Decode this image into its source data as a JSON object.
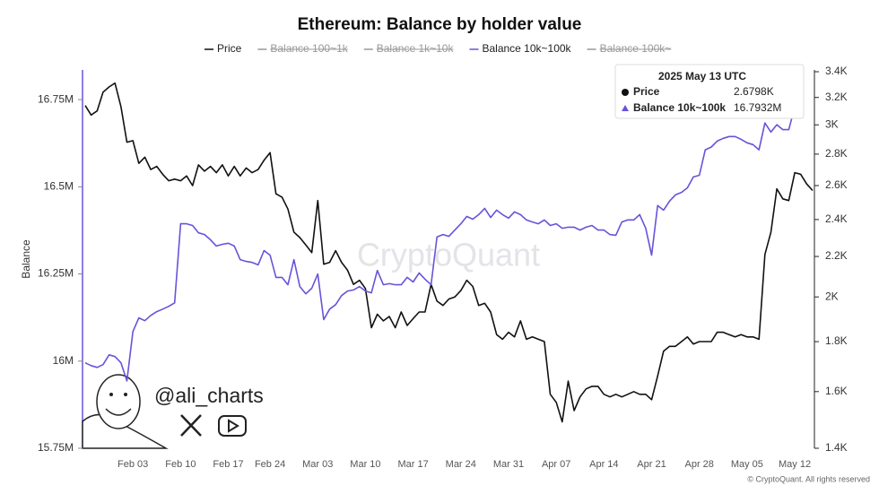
{
  "chart_data": {
    "type": "line",
    "title": "Ethereum: Balance by holder value",
    "y_label": "Balance",
    "watermark": "CryptoQuant",
    "author": "@ali_charts",
    "copyright": "© CryptoQuant. All rights reserved",
    "categories": [
      null,
      null,
      null,
      null,
      null,
      null,
      null,
      null,
      "Feb 03",
      null,
      null,
      null,
      null,
      null,
      null,
      null,
      "Feb 10",
      null,
      null,
      null,
      null,
      null,
      null,
      null,
      "Feb 17",
      null,
      null,
      null,
      null,
      null,
      null,
      "Feb 24",
      null,
      null,
      null,
      null,
      null,
      null,
      null,
      "Mar 03",
      null,
      null,
      null,
      null,
      null,
      null,
      null,
      "Mar 10",
      null,
      null,
      null,
      null,
      null,
      null,
      null,
      "Mar 17",
      null,
      null,
      null,
      null,
      null,
      null,
      null,
      "Mar 24",
      null,
      null,
      null,
      null,
      null,
      null,
      null,
      "Mar 31",
      null,
      null,
      null,
      null,
      null,
      null,
      null,
      "Apr 07",
      null,
      null,
      null,
      null,
      null,
      null,
      null,
      "Apr 14",
      null,
      null,
      null,
      null,
      null,
      null,
      null,
      "Apr 21",
      null,
      null,
      null,
      null,
      null,
      null,
      null,
      "Apr 28",
      null,
      null,
      null,
      null,
      null,
      null,
      null,
      "May 05",
      null,
      null,
      null,
      null,
      null,
      null,
      null,
      "May 12",
      null,
      null,
      null
    ],
    "series": [
      {
        "name": "Price",
        "color": "#111111",
        "axis": "y2",
        "values": [
          3140,
          3070,
          3100,
          3240,
          3280,
          3310,
          3130,
          2880,
          2890,
          2740,
          2780,
          2700,
          2720,
          2670,
          2630,
          2640,
          2630,
          2660,
          2600,
          2730,
          2690,
          2720,
          2680,
          2730,
          2660,
          2720,
          2660,
          2710,
          2680,
          2700,
          2760,
          2810,
          2550,
          2530,
          2460,
          2330,
          2300,
          2260,
          2220,
          2510,
          2160,
          2170,
          2230,
          2170,
          2130,
          2060,
          2080,
          2040,
          1860,
          1920,
          1890,
          1910,
          1860,
          1930,
          1870,
          1900,
          1930,
          1930,
          2060,
          1980,
          1960,
          1990,
          2000,
          2030,
          2080,
          2050,
          1960,
          1970,
          1930,
          1830,
          1810,
          1840,
          1820,
          1890,
          1810,
          1820,
          1810,
          1800,
          1590,
          1560,
          1490,
          1640,
          1530,
          1580,
          1610,
          1620,
          1620,
          1590,
          1580,
          1590,
          1580,
          1590,
          1600,
          1590,
          1590,
          1570,
          1660,
          1760,
          1780,
          1780,
          1800,
          1820,
          1790,
          1800,
          1800,
          1800,
          1840,
          1840,
          1830,
          1820,
          1830,
          1820,
          1820,
          1810,
          2210,
          2330,
          2580,
          2520,
          2510,
          2680,
          2670,
          2610,
          2570
        ]
      },
      {
        "name": "Balance 100~1k",
        "color": "#888888",
        "hidden": true
      },
      {
        "name": "Balance 1k~10k",
        "color": "#888888",
        "hidden": true
      },
      {
        "name": "Balance 10k~100k",
        "color": "#6a52d9",
        "values": [
          15995000,
          15987000,
          15982000,
          15990000,
          16018000,
          16013000,
          15995000,
          15943000,
          16085000,
          16124000,
          16116000,
          16131000,
          16142000,
          16149000,
          16157000,
          16167000,
          16394000,
          16394000,
          16389000,
          16368000,
          16363000,
          16348000,
          16330000,
          16335000,
          16338000,
          16330000,
          16291000,
          16286000,
          16283000,
          16276000,
          16317000,
          16304000,
          16240000,
          16240000,
          16219000,
          16291000,
          16214000,
          16193000,
          16209000,
          16250000,
          16119000,
          16149000,
          16162000,
          16188000,
          16201000,
          16204000,
          16214000,
          16201000,
          16196000,
          16260000,
          16219000,
          16222000,
          16219000,
          16219000,
          16240000,
          16227000,
          16253000,
          16235000,
          16219000,
          16356000,
          16363000,
          16358000,
          16376000,
          16394000,
          16415000,
          16407000,
          16420000,
          16438000,
          16412000,
          16433000,
          16420000,
          16410000,
          16428000,
          16420000,
          16405000,
          16399000,
          16394000,
          16405000,
          16389000,
          16394000,
          16381000,
          16384000,
          16384000,
          16376000,
          16384000,
          16389000,
          16376000,
          16376000,
          16363000,
          16361000,
          16399000,
          16405000,
          16405000,
          16420000,
          16381000,
          16304000,
          16446000,
          16433000,
          16459000,
          16477000,
          16484000,
          16497000,
          16528000,
          16533000,
          16606000,
          16614000,
          16631000,
          16639000,
          16644000,
          16644000,
          16636000,
          16626000,
          16621000,
          16606000,
          16683000,
          16657000,
          16678000,
          16664000,
          16664000,
          16729000,
          16793200,
          null,
          null
        ]
      },
      {
        "name": "Balance 100k~",
        "color": "#888888",
        "hidden": true
      }
    ],
    "ylim": [
      15750000,
      16830000
    ],
    "yticks": [
      {
        "value": 15750000,
        "label": "15.75M"
      },
      {
        "value": 16000000,
        "label": "16M"
      },
      {
        "value": 16250000,
        "label": "16.25M"
      },
      {
        "value": 16500000,
        "label": "16.5M"
      },
      {
        "value": 16750000,
        "label": "16.75M"
      }
    ],
    "y2lim": [
      1400,
      3400
    ],
    "y2log": true,
    "y2ticks": [
      {
        "value": 1400,
        "label": "1.4K"
      },
      {
        "value": 1600,
        "label": "1.6K"
      },
      {
        "value": 1800,
        "label": "1.8K"
      },
      {
        "value": 2000,
        "label": "2K"
      },
      {
        "value": 2200,
        "label": "2.2K"
      },
      {
        "value": 2400,
        "label": "2.4K"
      },
      {
        "value": 2600,
        "label": "2.6K"
      },
      {
        "value": 2800,
        "label": "2.8K"
      },
      {
        "value": 3000,
        "label": "3K"
      },
      {
        "value": 3200,
        "label": "3.2K"
      },
      {
        "value": 3400,
        "label": "3.4K"
      }
    ],
    "grid": false,
    "tooltip": {
      "title": "2025 May 13 UTC",
      "rows": [
        {
          "label": "Price",
          "value": 2679.8,
          "value_label": "2.6798K"
        },
        {
          "label": "Balance 10k~100k",
          "value": 16793200,
          "value_label": "16.7932M"
        }
      ]
    }
  }
}
